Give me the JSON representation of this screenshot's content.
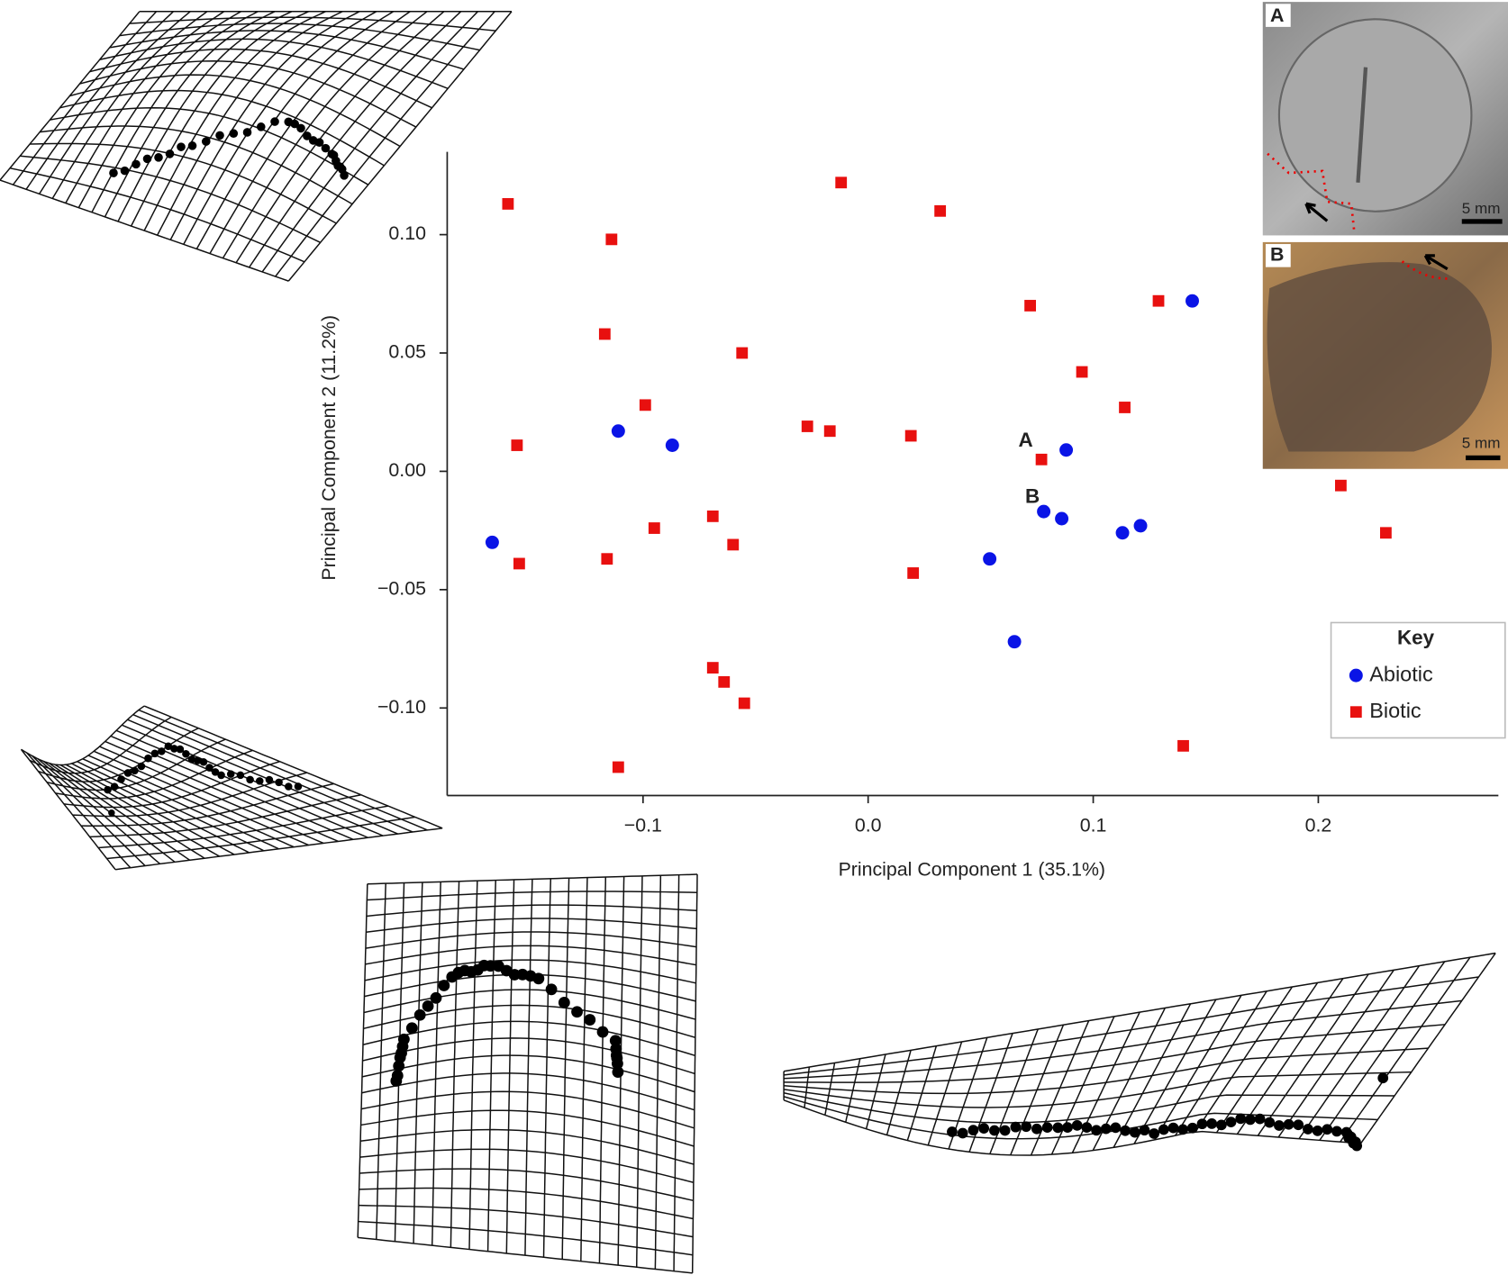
{
  "chart_data": {
    "type": "scatter",
    "xlabel": "Principal Component 1 (35.1%)",
    "ylabel": "Principal Component 2 (11.2%)",
    "xlim": [
      -0.187,
      0.28
    ],
    "ylim": [
      -0.137,
      0.135
    ],
    "xticks": [
      {
        "value": -0.1,
        "label": "−0.1"
      },
      {
        "value": 0,
        "label": "0.0"
      },
      0.1,
      0.2
    ],
    "yticks": [
      {
        "value": -0.1,
        "label": "−0.10"
      },
      {
        "value": -0.05,
        "label": "−0.05"
      },
      {
        "value": 0,
        "label": "0.00"
      },
      {
        "value": 0.05,
        "label": "0.05"
      },
      {
        "value": 0.1,
        "label": "0.10"
      }
    ],
    "legend_title": "Key",
    "legend": "right",
    "series": [
      {
        "name": "Abiotic",
        "color": "#0a14e6",
        "marker": "circle",
        "x": [
          0.144,
          -0.111,
          -0.087,
          0.088,
          0.078,
          0.086,
          0.121,
          0.113,
          -0.167,
          0.054,
          0.065
        ],
        "y": [
          0.072,
          0.017,
          0.011,
          0.009,
          -0.017,
          -0.02,
          -0.023,
          -0.026,
          -0.03,
          -0.037,
          -0.072
        ]
      },
      {
        "name": "Biotic",
        "color": "#e8100f",
        "marker": "square",
        "x": [
          -0.16,
          -0.114,
          -0.012,
          0.032,
          0.072,
          0.129,
          -0.117,
          -0.056,
          0.095,
          -0.099,
          0.114,
          -0.027,
          -0.017,
          0.019,
          -0.156,
          0.077,
          0.21,
          -0.069,
          -0.095,
          -0.06,
          0.23,
          -0.116,
          -0.155,
          0.02,
          -0.069,
          -0.064,
          -0.055,
          0.14,
          -0.111
        ],
        "y": [
          0.113,
          0.098,
          0.122,
          0.11,
          0.07,
          0.072,
          0.058,
          0.05,
          0.042,
          0.028,
          0.027,
          0.019,
          0.017,
          0.015,
          0.011,
          0.005,
          -0.006,
          -0.019,
          -0.024,
          -0.031,
          -0.026,
          -0.037,
          -0.039,
          -0.043,
          -0.083,
          -0.089,
          -0.098,
          -0.116,
          -0.125
        ]
      }
    ],
    "annotations": [
      {
        "text": "A",
        "x": 0.07,
        "y": 0.0126
      },
      {
        "text": "B",
        "x": 0.073,
        "y": -0.011
      }
    ]
  },
  "insets": [
    {
      "label": "A",
      "scale_label": "5 mm"
    },
    {
      "label": "B",
      "scale_label": "5 mm"
    }
  ]
}
